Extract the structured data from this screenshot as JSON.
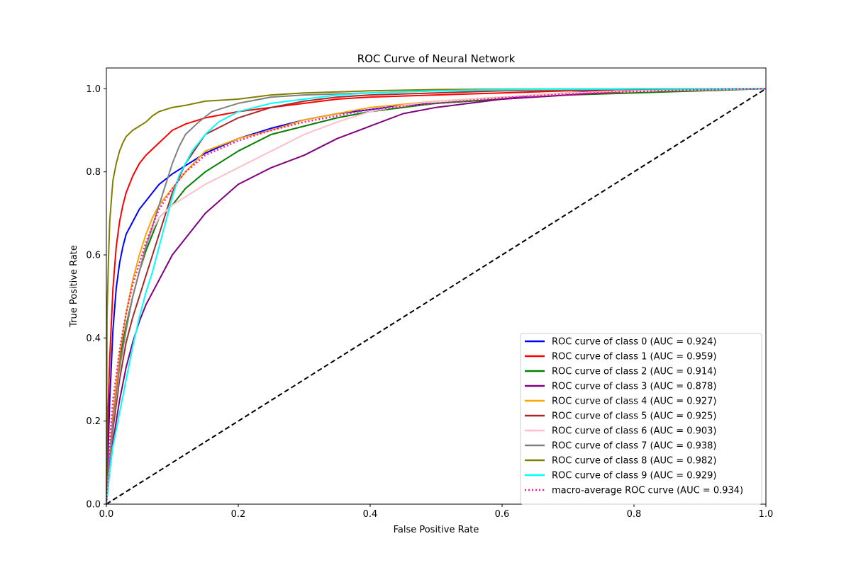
{
  "chart_data": {
    "type": "line",
    "title": "ROC Curve of Neural Network",
    "xlabel": "False Positive Rate",
    "ylabel": "True Positive Rate",
    "xlim": [
      0.0,
      1.0
    ],
    "ylim": [
      0.0,
      1.05
    ],
    "xticks": [
      "0.0",
      "0.2",
      "0.4",
      "0.6",
      "0.8",
      "1.0"
    ],
    "yticks": [
      "0.0",
      "0.2",
      "0.4",
      "0.6",
      "0.8",
      "1.0"
    ],
    "grid": false,
    "legend_position": "lower-right",
    "series": [
      {
        "name": "ROC curve of class 0 (AUC = 0.924)",
        "color": "#0000ff",
        "style": "solid",
        "x": [
          0,
          0.002,
          0.005,
          0.01,
          0.015,
          0.02,
          0.025,
          0.03,
          0.04,
          0.05,
          0.06,
          0.07,
          0.08,
          0.1,
          0.12,
          0.15,
          0.2,
          0.25,
          0.3,
          0.35,
          0.4,
          0.45,
          0.5,
          0.55,
          0.6,
          0.65,
          0.7,
          0.75
        ],
        "y": [
          0,
          0.1,
          0.25,
          0.42,
          0.52,
          0.58,
          0.62,
          0.65,
          0.68,
          0.71,
          0.73,
          0.75,
          0.77,
          0.795,
          0.815,
          0.845,
          0.88,
          0.905,
          0.925,
          0.94,
          0.95,
          0.96,
          0.965,
          0.97,
          0.975,
          0.985,
          0.99,
          0.995
        ]
      },
      {
        "name": "ROC curve of class 1 (AUC = 0.959)",
        "color": "#ff0000",
        "style": "solid",
        "x": [
          0,
          0.002,
          0.005,
          0.01,
          0.015,
          0.02,
          0.025,
          0.03,
          0.04,
          0.05,
          0.06,
          0.07,
          0.08,
          0.09,
          0.1,
          0.12,
          0.15,
          0.2,
          0.25,
          0.3,
          0.35,
          0.4,
          0.5,
          0.6,
          0.7,
          0.77
        ],
        "y": [
          0,
          0.2,
          0.35,
          0.52,
          0.62,
          0.68,
          0.72,
          0.75,
          0.79,
          0.82,
          0.84,
          0.855,
          0.87,
          0.885,
          0.9,
          0.915,
          0.93,
          0.945,
          0.955,
          0.965,
          0.975,
          0.98,
          0.985,
          0.99,
          0.995,
          0.997
        ]
      },
      {
        "name": "ROC curve of class 2 (AUC = 0.914)",
        "color": "#008000",
        "style": "solid",
        "x": [
          0,
          0.005,
          0.01,
          0.02,
          0.03,
          0.04,
          0.05,
          0.06,
          0.07,
          0.08,
          0.1,
          0.12,
          0.15,
          0.2,
          0.25,
          0.3,
          0.35,
          0.4,
          0.5,
          0.6,
          0.7,
          0.8,
          0.9,
          1.0
        ],
        "y": [
          0,
          0.1,
          0.2,
          0.35,
          0.43,
          0.5,
          0.56,
          0.61,
          0.65,
          0.69,
          0.72,
          0.76,
          0.8,
          0.85,
          0.89,
          0.91,
          0.93,
          0.945,
          0.965,
          0.975,
          0.985,
          0.99,
          0.995,
          1.0
        ]
      },
      {
        "name": "ROC curve of class 3 (AUC = 0.878)",
        "color": "#800080",
        "style": "solid",
        "x": [
          0,
          0.005,
          0.01,
          0.02,
          0.03,
          0.04,
          0.05,
          0.06,
          0.07,
          0.08,
          0.09,
          0.1,
          0.12,
          0.15,
          0.2,
          0.25,
          0.3,
          0.35,
          0.4,
          0.45,
          0.5,
          0.55,
          0.6,
          0.7,
          0.8,
          1.0
        ],
        "y": [
          0,
          0.08,
          0.15,
          0.25,
          0.33,
          0.39,
          0.44,
          0.48,
          0.51,
          0.54,
          0.57,
          0.6,
          0.64,
          0.7,
          0.77,
          0.81,
          0.84,
          0.88,
          0.91,
          0.94,
          0.955,
          0.965,
          0.975,
          0.985,
          0.995,
          1.0
        ]
      },
      {
        "name": "ROC curve of class 4 (AUC = 0.927)",
        "color": "#ffa500",
        "style": "solid",
        "x": [
          0,
          0.005,
          0.01,
          0.02,
          0.03,
          0.04,
          0.05,
          0.06,
          0.07,
          0.08,
          0.1,
          0.12,
          0.15,
          0.2,
          0.25,
          0.3,
          0.35,
          0.4,
          0.5,
          0.6,
          0.7,
          0.8,
          1.0
        ],
        "y": [
          0,
          0.12,
          0.22,
          0.36,
          0.46,
          0.54,
          0.6,
          0.65,
          0.69,
          0.72,
          0.76,
          0.8,
          0.85,
          0.88,
          0.9,
          0.925,
          0.94,
          0.955,
          0.97,
          0.98,
          0.99,
          0.995,
          1.0
        ]
      },
      {
        "name": "ROC curve of class 5 (AUC = 0.925)",
        "color": "#a52a2a",
        "style": "solid",
        "x": [
          0,
          0.005,
          0.01,
          0.02,
          0.03,
          0.04,
          0.05,
          0.06,
          0.07,
          0.08,
          0.09,
          0.1,
          0.12,
          0.15,
          0.2,
          0.25,
          0.3,
          0.35,
          0.4,
          0.5,
          0.6,
          0.7,
          0.8,
          1.0
        ],
        "y": [
          0,
          0.1,
          0.18,
          0.3,
          0.39,
          0.45,
          0.5,
          0.55,
          0.6,
          0.65,
          0.7,
          0.75,
          0.82,
          0.89,
          0.93,
          0.955,
          0.97,
          0.98,
          0.985,
          0.99,
          0.995,
          0.997,
          0.998,
          1.0
        ]
      },
      {
        "name": "ROC curve of class 6 (AUC = 0.903)",
        "color": "#ffc0cb",
        "style": "solid",
        "x": [
          0,
          0.005,
          0.01,
          0.02,
          0.03,
          0.04,
          0.05,
          0.06,
          0.07,
          0.08,
          0.1,
          0.12,
          0.15,
          0.2,
          0.25,
          0.3,
          0.35,
          0.4,
          0.45,
          0.5,
          0.6,
          0.7,
          0.8,
          1.0
        ],
        "y": [
          0,
          0.1,
          0.2,
          0.32,
          0.42,
          0.5,
          0.56,
          0.62,
          0.66,
          0.69,
          0.72,
          0.74,
          0.77,
          0.81,
          0.85,
          0.89,
          0.92,
          0.945,
          0.96,
          0.97,
          0.98,
          0.99,
          0.995,
          1.0
        ]
      },
      {
        "name": "ROC curve of class 7 (AUC = 0.938)",
        "color": "#808080",
        "style": "solid",
        "x": [
          0,
          0.005,
          0.01,
          0.02,
          0.03,
          0.04,
          0.05,
          0.06,
          0.07,
          0.08,
          0.09,
          0.1,
          0.11,
          0.12,
          0.14,
          0.16,
          0.18,
          0.2,
          0.25,
          0.3,
          0.4,
          0.5,
          0.6,
          0.8,
          1.0
        ],
        "y": [
          0,
          0.1,
          0.2,
          0.33,
          0.42,
          0.5,
          0.56,
          0.62,
          0.67,
          0.72,
          0.77,
          0.82,
          0.86,
          0.89,
          0.92,
          0.945,
          0.955,
          0.965,
          0.98,
          0.985,
          0.99,
          0.995,
          0.997,
          0.999,
          1.0
        ]
      },
      {
        "name": "ROC curve of class 8 (AUC = 0.982)",
        "color": "#808000",
        "style": "solid",
        "x": [
          0,
          0.001,
          0.003,
          0.005,
          0.008,
          0.01,
          0.015,
          0.02,
          0.025,
          0.03,
          0.04,
          0.05,
          0.06,
          0.07,
          0.08,
          0.1,
          0.12,
          0.15,
          0.2,
          0.25,
          0.3,
          0.4,
          0.5,
          0.6,
          0.8,
          1.0
        ],
        "y": [
          0,
          0.45,
          0.58,
          0.68,
          0.74,
          0.78,
          0.82,
          0.85,
          0.87,
          0.885,
          0.9,
          0.91,
          0.92,
          0.935,
          0.945,
          0.955,
          0.96,
          0.97,
          0.975,
          0.985,
          0.99,
          0.995,
          0.998,
          0.999,
          1.0,
          1.0
        ]
      },
      {
        "name": "ROC curve of class 9 (AUC = 0.929)",
        "color": "#00ffff",
        "style": "solid",
        "x": [
          0,
          0.005,
          0.01,
          0.02,
          0.03,
          0.04,
          0.05,
          0.06,
          0.07,
          0.08,
          0.09,
          0.1,
          0.11,
          0.12,
          0.13,
          0.15,
          0.17,
          0.2,
          0.25,
          0.3,
          0.35,
          0.4,
          0.5,
          0.6,
          0.8,
          1.0
        ],
        "y": [
          0,
          0.08,
          0.14,
          0.22,
          0.3,
          0.38,
          0.45,
          0.51,
          0.56,
          0.62,
          0.68,
          0.74,
          0.79,
          0.82,
          0.85,
          0.89,
          0.92,
          0.945,
          0.965,
          0.975,
          0.985,
          0.99,
          0.995,
          0.998,
          1.0,
          1.0
        ]
      },
      {
        "name": "macro-average ROC curve (AUC = 0.934)",
        "color": "#ff1493",
        "style": "dotted",
        "x": [
          0,
          0.005,
          0.01,
          0.02,
          0.03,
          0.04,
          0.05,
          0.06,
          0.07,
          0.08,
          0.1,
          0.12,
          0.15,
          0.2,
          0.25,
          0.3,
          0.35,
          0.4,
          0.5,
          0.6,
          0.7,
          0.8,
          0.9,
          1.0
        ],
        "y": [
          0,
          0.15,
          0.25,
          0.37,
          0.46,
          0.53,
          0.58,
          0.63,
          0.67,
          0.71,
          0.76,
          0.8,
          0.84,
          0.875,
          0.9,
          0.92,
          0.935,
          0.95,
          0.965,
          0.978,
          0.987,
          0.993,
          0.997,
          1.0
        ]
      },
      {
        "name": "",
        "color": "#000000",
        "style": "dashed",
        "x": [
          0,
          1
        ],
        "y": [
          0,
          1
        ]
      }
    ]
  }
}
